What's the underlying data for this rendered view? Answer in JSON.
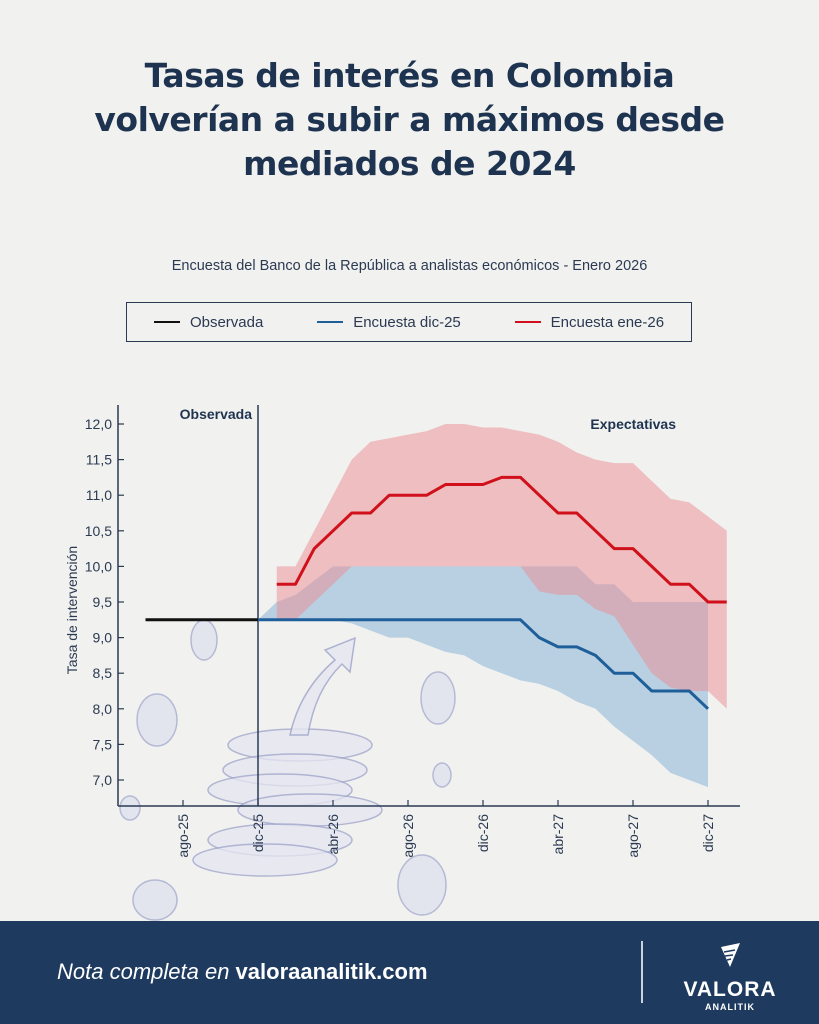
{
  "header": {
    "title_lines": [
      "Tasas de interés en Colombia",
      "volverían a subir a máximos desde",
      "mediados de 2024"
    ],
    "subtitle": "Encuesta del Banco de la República a analistas económicos - Enero 2026"
  },
  "legend": [
    {
      "label": "Observada",
      "color": "#111111"
    },
    {
      "label": "Encuesta dic-25",
      "color": "#1f5f99"
    },
    {
      "label": "Encuesta ene-26",
      "color": "#d0111b"
    }
  ],
  "chart_data": {
    "type": "line",
    "title": "",
    "ylabel": "Tasa de intervención",
    "xlabel": "",
    "ylim": [
      6.6,
      12.2
    ],
    "xlim": [
      "2025-05",
      "2028-02"
    ],
    "grid": false,
    "legend_placement": "top",
    "y_ticks": [
      "7,0",
      "7,5",
      "8,0",
      "8,5",
      "9,0",
      "9,5",
      "10,0",
      "10,5",
      "11,0",
      "11,5",
      "12,0"
    ],
    "x_ticks": [
      {
        "date": "2025-08",
        "label": "ago-25"
      },
      {
        "date": "2025-12",
        "label": "dic-25"
      },
      {
        "date": "2026-04",
        "label": "abr-26"
      },
      {
        "date": "2026-08",
        "label": "ago-26"
      },
      {
        "date": "2026-12",
        "label": "dic-26"
      },
      {
        "date": "2027-04",
        "label": "abr-27"
      },
      {
        "date": "2027-08",
        "label": "ago-27"
      },
      {
        "date": "2027-12",
        "label": "dic-27"
      }
    ],
    "annotations": [
      {
        "text": "Observada",
        "date": "2025-12"
      },
      {
        "text": "Expectativas",
        "date": "2027-04"
      }
    ],
    "divider_date": "2025-12",
    "series": [
      {
        "name": "Observada",
        "color": "#111111",
        "start": "2025-06",
        "values": [
          9.25,
          9.25,
          9.25,
          9.25,
          9.25,
          9.25,
          9.25
        ]
      },
      {
        "name": "Encuesta dic-25",
        "color": "#1f5f99",
        "band_color": "#7fb0d6",
        "start": "2025-12",
        "values": [
          9.25,
          9.25,
          9.25,
          9.25,
          9.25,
          9.25,
          9.25,
          9.25,
          9.25,
          9.25,
          9.25,
          9.25,
          9.25,
          9.25,
          9.25,
          9.0,
          8.87,
          8.87,
          8.75,
          8.5,
          8.5,
          8.25,
          8.25,
          8.25,
          8.0
        ],
        "upper": [
          9.25,
          9.5,
          9.6,
          9.8,
          10.0,
          10.0,
          10.0,
          10.0,
          10.0,
          10.0,
          10.0,
          10.0,
          10.0,
          10.0,
          10.0,
          10.0,
          10.0,
          10.0,
          9.75,
          9.75,
          9.5,
          9.5,
          9.5,
          9.5,
          9.5
        ],
        "lower": [
          9.25,
          9.25,
          9.25,
          9.25,
          9.25,
          9.2,
          9.1,
          9.0,
          9.0,
          8.9,
          8.8,
          8.75,
          8.6,
          8.5,
          8.4,
          8.35,
          8.25,
          8.1,
          8.0,
          7.75,
          7.55,
          7.35,
          7.1,
          7.0,
          6.9
        ]
      },
      {
        "name": "Encuesta ene-26",
        "color": "#d0111b",
        "band_color": "#ec8c93",
        "start": "2026-01",
        "values": [
          9.75,
          9.75,
          10.25,
          10.5,
          10.75,
          10.75,
          11.0,
          11.0,
          11.0,
          11.15,
          11.15,
          11.15,
          11.25,
          11.25,
          11.0,
          10.75,
          10.75,
          10.5,
          10.25,
          10.25,
          10.0,
          9.75,
          9.75,
          9.5,
          9.5
        ],
        "upper": [
          10.0,
          10.0,
          10.5,
          11.0,
          11.5,
          11.75,
          11.8,
          11.85,
          11.9,
          12.0,
          12.0,
          11.95,
          11.95,
          11.9,
          11.85,
          11.75,
          11.6,
          11.5,
          11.45,
          11.45,
          11.2,
          10.95,
          10.9,
          10.7,
          10.5
        ],
        "lower": [
          9.25,
          9.25,
          9.5,
          9.75,
          10.0,
          10.0,
          10.0,
          10.0,
          10.0,
          10.0,
          10.0,
          10.0,
          10.0,
          10.0,
          9.65,
          9.6,
          9.6,
          9.4,
          9.3,
          8.9,
          8.5,
          8.3,
          8.25,
          8.25,
          8.0
        ]
      }
    ]
  },
  "footer": {
    "note_prefix": "Nota completa en ",
    "note_link": "valoraanalitik.com",
    "logo_main": "VALORA",
    "logo_sub": "ANALITIK"
  }
}
